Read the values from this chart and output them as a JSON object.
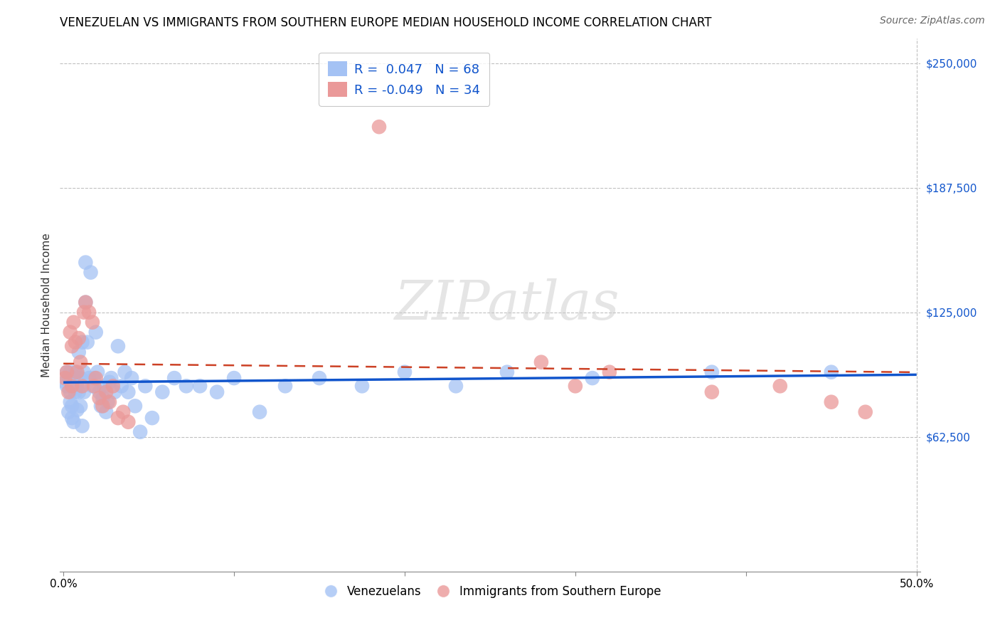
{
  "title": "VENEZUELAN VS IMMIGRANTS FROM SOUTHERN EUROPE MEDIAN HOUSEHOLD INCOME CORRELATION CHART",
  "source": "Source: ZipAtlas.com",
  "ylabel": "Median Household Income",
  "yticks": [
    0,
    62500,
    125000,
    187500,
    250000
  ],
  "ytick_labels": [
    "",
    "$62,500",
    "$125,000",
    "$187,500",
    "$250,000"
  ],
  "ylim": [
    -5000,
    262500
  ],
  "xlim": [
    -0.002,
    0.502
  ],
  "blue_color": "#a4c2f4",
  "pink_color": "#ea9999",
  "blue_line_color": "#1155cc",
  "pink_line_color": "#cc4125",
  "watermark": "ZIPatlas",
  "venezuelans_x": [
    0.001,
    0.002,
    0.002,
    0.003,
    0.003,
    0.004,
    0.004,
    0.004,
    0.005,
    0.005,
    0.005,
    0.006,
    0.006,
    0.007,
    0.007,
    0.008,
    0.008,
    0.009,
    0.009,
    0.01,
    0.01,
    0.011,
    0.011,
    0.012,
    0.012,
    0.013,
    0.013,
    0.014,
    0.015,
    0.016,
    0.017,
    0.018,
    0.019,
    0.02,
    0.021,
    0.022,
    0.023,
    0.024,
    0.025,
    0.026,
    0.027,
    0.028,
    0.03,
    0.032,
    0.034,
    0.036,
    0.038,
    0.04,
    0.042,
    0.045,
    0.048,
    0.052,
    0.058,
    0.065,
    0.072,
    0.08,
    0.09,
    0.1,
    0.115,
    0.13,
    0.15,
    0.175,
    0.2,
    0.23,
    0.26,
    0.31,
    0.38,
    0.45
  ],
  "venezuelans_y": [
    90000,
    88000,
    95000,
    75000,
    92000,
    80000,
    85000,
    95000,
    72000,
    88000,
    78000,
    92000,
    70000,
    85000,
    95000,
    88000,
    76000,
    105000,
    85000,
    92000,
    78000,
    68000,
    110000,
    85000,
    95000,
    130000,
    150000,
    110000,
    92000,
    145000,
    88000,
    92000,
    115000,
    95000,
    85000,
    78000,
    82000,
    88000,
    75000,
    80000,
    90000,
    92000,
    85000,
    108000,
    88000,
    95000,
    85000,
    92000,
    78000,
    65000,
    88000,
    72000,
    85000,
    92000,
    88000,
    88000,
    85000,
    92000,
    75000,
    88000,
    92000,
    88000,
    95000,
    88000,
    95000,
    92000,
    95000,
    95000
  ],
  "southern_europe_x": [
    0.001,
    0.002,
    0.003,
    0.004,
    0.005,
    0.005,
    0.006,
    0.007,
    0.008,
    0.009,
    0.01,
    0.011,
    0.012,
    0.013,
    0.015,
    0.017,
    0.018,
    0.019,
    0.021,
    0.023,
    0.025,
    0.027,
    0.029,
    0.032,
    0.035,
    0.038,
    0.185,
    0.28,
    0.3,
    0.32,
    0.38,
    0.42,
    0.45,
    0.47
  ],
  "southern_europe_y": [
    92000,
    95000,
    85000,
    115000,
    108000,
    88000,
    120000,
    110000,
    95000,
    112000,
    100000,
    88000,
    125000,
    130000,
    125000,
    120000,
    88000,
    92000,
    82000,
    78000,
    85000,
    80000,
    88000,
    72000,
    75000,
    70000,
    218000,
    100000,
    88000,
    95000,
    85000,
    88000,
    80000,
    75000
  ],
  "title_fontsize": 12,
  "axis_label_fontsize": 11,
  "tick_fontsize": 11,
  "legend_fontsize": 13,
  "watermark_fontsize": 55
}
